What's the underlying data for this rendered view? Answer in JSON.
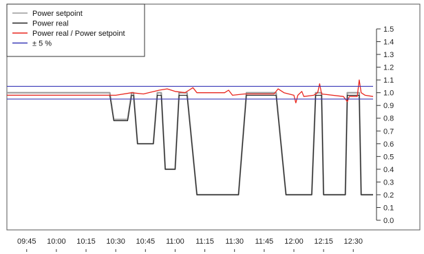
{
  "chart_data": {
    "type": "line",
    "title": "",
    "xlabel": "",
    "ylabel": "",
    "ylim": [
      0.0,
      1.5
    ],
    "y_ticks": [
      "0.0",
      "0.1",
      "0.2",
      "0.3",
      "0.4",
      "0.5",
      "0.6",
      "0.7",
      "0.8",
      "0.9",
      "1.0",
      "1.1",
      "1.2",
      "1.3",
      "1.4",
      "1.5"
    ],
    "x_ticks": [
      "09:45",
      "10:00",
      "10:15",
      "10:30",
      "10:45",
      "11:00",
      "11:15",
      "11:30",
      "11:45",
      "12:00",
      "12:15",
      "12:30"
    ],
    "xlim": [
      "09:35",
      "12:40"
    ],
    "y_axis_side": "right",
    "grid": false,
    "legend_position": "top-left",
    "legend": [
      {
        "name": "Power setpoint",
        "color": "#9a9a9a"
      },
      {
        "name": "Power real",
        "color": "#222222"
      },
      {
        "name": "Power real / Power setpoint",
        "color": "#e8261f"
      },
      {
        "name": "± 5 %",
        "color": "#3a3ab8"
      }
    ],
    "series": [
      {
        "name": "Power setpoint",
        "color": "#9a9a9a",
        "points": [
          [
            "09:35",
            1.0
          ],
          [
            "10:27",
            1.0
          ],
          [
            "10:29",
            0.79
          ],
          [
            "10:36",
            0.79
          ],
          [
            "10:38",
            1.0
          ],
          [
            "10:39",
            1.0
          ],
          [
            "10:41",
            0.6
          ],
          [
            "10:49",
            0.6
          ],
          [
            "10:51",
            1.0
          ],
          [
            "10:53",
            1.0
          ],
          [
            "10:55",
            0.4
          ],
          [
            "11:00",
            0.4
          ],
          [
            "11:02",
            1.0
          ],
          [
            "11:06",
            1.0
          ],
          [
            "11:11",
            0.2
          ],
          [
            "11:32",
            0.2
          ],
          [
            "11:36",
            1.0
          ],
          [
            "11:51",
            1.0
          ],
          [
            "11:56",
            0.2
          ],
          [
            "12:09",
            0.2
          ],
          [
            "12:11",
            1.0
          ],
          [
            "12:14",
            1.0
          ],
          [
            "12:15",
            0.2
          ],
          [
            "12:26",
            0.2
          ],
          [
            "12:27",
            1.0
          ],
          [
            "12:33",
            1.0
          ],
          [
            "12:34",
            0.2
          ],
          [
            "12:40",
            0.2
          ]
        ]
      },
      {
        "name": "Power real",
        "color": "#222222",
        "points": [
          [
            "09:35",
            0.98
          ],
          [
            "10:27",
            0.98
          ],
          [
            "10:29",
            0.78
          ],
          [
            "10:36",
            0.78
          ],
          [
            "10:38",
            0.98
          ],
          [
            "10:39",
            0.98
          ],
          [
            "10:41",
            0.6
          ],
          [
            "10:49",
            0.6
          ],
          [
            "10:51",
            0.98
          ],
          [
            "10:53",
            0.98
          ],
          [
            "10:55",
            0.4
          ],
          [
            "11:00",
            0.4
          ],
          [
            "11:02",
            0.98
          ],
          [
            "11:06",
            0.98
          ],
          [
            "11:11",
            0.2
          ],
          [
            "11:32",
            0.2
          ],
          [
            "11:36",
            0.98
          ],
          [
            "11:51",
            0.98
          ],
          [
            "11:56",
            0.2
          ],
          [
            "12:09",
            0.2
          ],
          [
            "12:11",
            0.98
          ],
          [
            "12:14",
            0.98
          ],
          [
            "12:15",
            0.2
          ],
          [
            "12:26",
            0.2
          ],
          [
            "12:27",
            0.98
          ],
          [
            "12:33",
            0.98
          ],
          [
            "12:34",
            0.2
          ],
          [
            "12:40",
            0.2
          ]
        ]
      },
      {
        "name": "Power real / Power setpoint",
        "color": "#e8261f",
        "points": [
          [
            "09:35",
            0.98
          ],
          [
            "10:00",
            0.98
          ],
          [
            "10:30",
            0.98
          ],
          [
            "10:38",
            1.0
          ],
          [
            "10:44",
            0.99
          ],
          [
            "10:52",
            1.02
          ],
          [
            "10:56",
            1.03
          ],
          [
            "11:00",
            1.01
          ],
          [
            "11:05",
            1.0
          ],
          [
            "11:07",
            1.02
          ],
          [
            "11:09",
            1.04
          ],
          [
            "11:11",
            1.0
          ],
          [
            "11:25",
            1.0
          ],
          [
            "11:27",
            1.02
          ],
          [
            "11:29",
            0.98
          ],
          [
            "11:35",
            0.99
          ],
          [
            "11:50",
            0.99
          ],
          [
            "11:52",
            1.03
          ],
          [
            "11:55",
            1.0
          ],
          [
            "12:00",
            0.98
          ],
          [
            "12:01",
            0.92
          ],
          [
            "12:02",
            0.98
          ],
          [
            "12:04",
            1.01
          ],
          [
            "12:05",
            0.97
          ],
          [
            "12:10",
            0.98
          ],
          [
            "12:12",
            1.0
          ],
          [
            "12:13",
            1.07
          ],
          [
            "12:14",
            0.99
          ],
          [
            "12:25",
            0.97
          ],
          [
            "12:27",
            0.93
          ],
          [
            "12:28",
            0.97
          ],
          [
            "12:32",
            0.97
          ],
          [
            "12:33",
            1.1
          ],
          [
            "12:34",
            1.0
          ],
          [
            "12:36",
            0.98
          ],
          [
            "12:40",
            0.97
          ]
        ]
      },
      {
        "name": "± 5 %",
        "color": "#3a3ab8",
        "points": [
          [
            "09:35",
            1.05
          ],
          [
            "12:40",
            1.05
          ]
        ]
      },
      {
        "name": "± 5 % lower",
        "color": "#3a3ab8",
        "points": [
          [
            "09:35",
            0.95
          ],
          [
            "12:40",
            0.95
          ]
        ]
      }
    ]
  }
}
